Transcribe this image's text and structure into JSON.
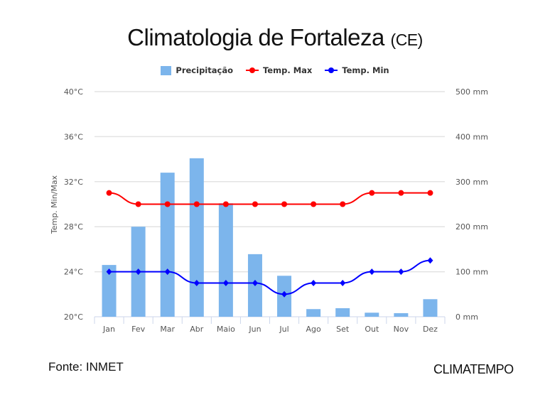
{
  "title": "Climatologia de Fortaleza",
  "subtitle": "(CE)",
  "source": "Fonte: INMET",
  "logo": "CLIMATEMPO",
  "chart_data": {
    "type": "bar",
    "title": "Climatologia de Fortaleza (CE)",
    "categories": [
      "Jan",
      "Fev",
      "Mar",
      "Abr",
      "Maio",
      "Jun",
      "Jul",
      "Ago",
      "Set",
      "Out",
      "Nov",
      "Dez"
    ],
    "series": [
      {
        "name": "Precipitação",
        "type": "bar",
        "axis": "right",
        "color": "#7cb5ec",
        "values": [
          115,
          200,
          320,
          352,
          252,
          139,
          91,
          17,
          19,
          9,
          8,
          39
        ]
      },
      {
        "name": "Temp. Max",
        "type": "line",
        "axis": "left",
        "color": "#ff0000",
        "values": [
          31,
          30,
          30,
          30,
          30,
          30,
          30,
          30,
          30,
          31,
          31,
          31
        ]
      },
      {
        "name": "Temp. Min",
        "type": "line",
        "axis": "left",
        "color": "#0000ff",
        "values": [
          24,
          24,
          24,
          23,
          23,
          23,
          22,
          23,
          23,
          24,
          24,
          25
        ]
      }
    ],
    "ylabel": "Temp. Min/Max",
    "ylim": [
      20,
      40
    ],
    "yticks": [
      "20°C",
      "24°C",
      "28°C",
      "32°C",
      "36°C",
      "40°C"
    ],
    "y2lim": [
      0,
      500
    ],
    "y2ticks": [
      "0 mm",
      "100 mm",
      "200 mm",
      "300 mm",
      "400 mm",
      "500 mm"
    ],
    "legend": "top",
    "grid": true
  }
}
